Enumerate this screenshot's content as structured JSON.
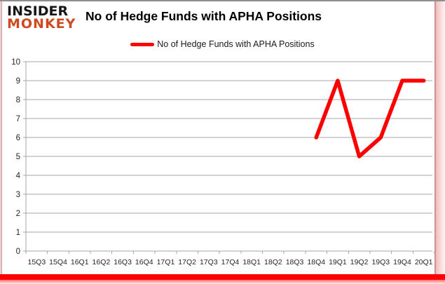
{
  "logo": {
    "line1": "INSIDER",
    "line2": "MONKEY",
    "color1": "#161616",
    "color2": "#CE4A21"
  },
  "header": {
    "title": "No of Hedge Funds with APHA Positions"
  },
  "legend": {
    "label": "No of Hedge Funds with APHA Positions",
    "swatch_color": "#FF0000"
  },
  "frame": {
    "bottom_bar_color": "#FF0000"
  },
  "chart_data": {
    "type": "line",
    "title": "No of Hedge Funds with APHA Positions",
    "categories": [
      "15Q3",
      "15Q4",
      "16Q1",
      "16Q2",
      "16Q3",
      "16Q4",
      "17Q1",
      "17Q2",
      "17Q3",
      "17Q4",
      "18Q1",
      "18Q2",
      "18Q3",
      "18Q4",
      "19Q1",
      "19Q2",
      "19Q3",
      "19Q4",
      "20Q1"
    ],
    "series": [
      {
        "name": "No of Hedge Funds with APHA Positions",
        "color": "#FF0000",
        "values": [
          null,
          null,
          null,
          null,
          null,
          null,
          null,
          null,
          null,
          null,
          null,
          null,
          null,
          6,
          9,
          5,
          6,
          9,
          9
        ]
      }
    ],
    "xlabel": "",
    "ylabel": "",
    "ylim": [
      0,
      10
    ],
    "yticks": [
      0,
      1,
      2,
      3,
      4,
      5,
      6,
      7,
      8,
      9,
      10
    ],
    "grid": true,
    "legend_position": "top-center",
    "gridline_color": "#A6A6A6",
    "axis_text_color": "#262626"
  }
}
